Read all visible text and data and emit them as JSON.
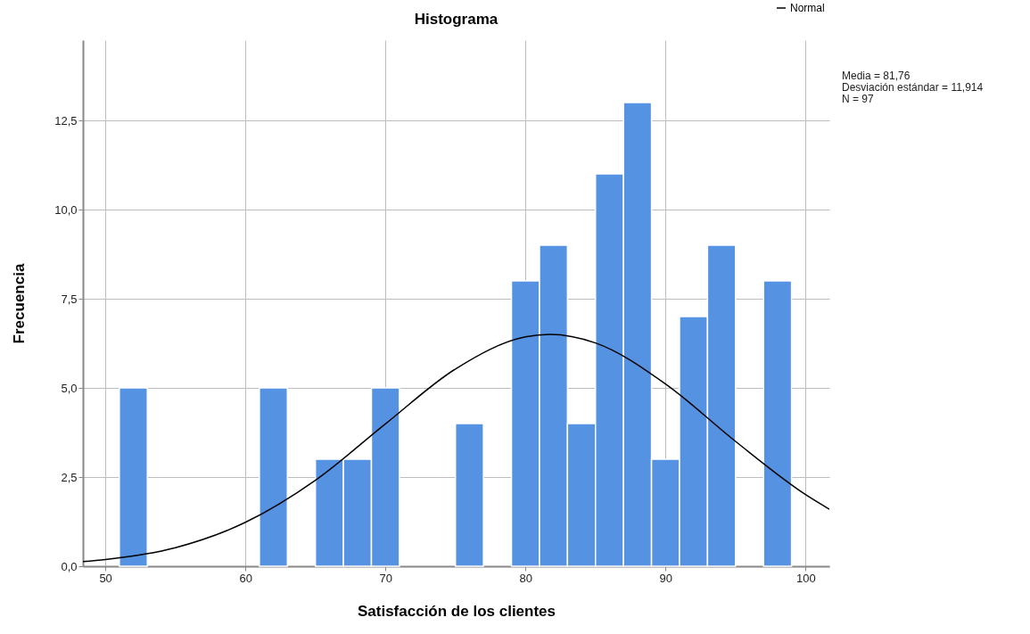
{
  "chart_data": {
    "type": "histogram",
    "title": "Histograma",
    "xlabel": "Satisfacción de los clientes",
    "ylabel": "Frecuencia",
    "bins": [
      51,
      53,
      55,
      57,
      59,
      61,
      63,
      65,
      67,
      69,
      71,
      73,
      75,
      77,
      79,
      81,
      83,
      85,
      87,
      89,
      91,
      93,
      95,
      97,
      99
    ],
    "values": [
      5,
      0,
      0,
      0,
      0,
      5,
      0,
      3,
      3,
      5,
      0,
      0,
      4,
      0,
      8,
      9,
      4,
      11,
      13,
      3,
      7,
      9,
      0,
      8
    ],
    "color": "#5592e2",
    "series": [
      {
        "name": "Normal",
        "type": "line",
        "color": "#000000",
        "x": [
          48.4,
          50,
          55,
          60,
          65,
          70,
          75,
          80,
          81.76,
          85,
          90,
          95,
          100,
          101.7
        ],
        "values": [
          0.13,
          0.19,
          0.52,
          1.23,
          2.41,
          3.99,
          5.53,
          6.43,
          6.5,
          6.26,
          5.11,
          3.5,
          2.01,
          1.6
        ]
      }
    ],
    "xlim": [
      48.4,
      101.7
    ],
    "xticks": [
      50,
      60,
      70,
      80,
      90,
      100
    ],
    "ylim": [
      0,
      14.75
    ],
    "yticks": [
      {
        "value": 0,
        "label": "0,0"
      },
      {
        "value": 2.5,
        "label": "2,5"
      },
      {
        "value": 5,
        "label": "5,0"
      },
      {
        "value": 7.5,
        "label": "7,5"
      },
      {
        "value": 10,
        "label": "10,0"
      },
      {
        "value": 12.5,
        "label": "12,5"
      }
    ],
    "grid": true,
    "legend": "top right",
    "annotations": [
      "Media = 81,76",
      "Desviación estándar = 11,914",
      "N = 97"
    ]
  }
}
